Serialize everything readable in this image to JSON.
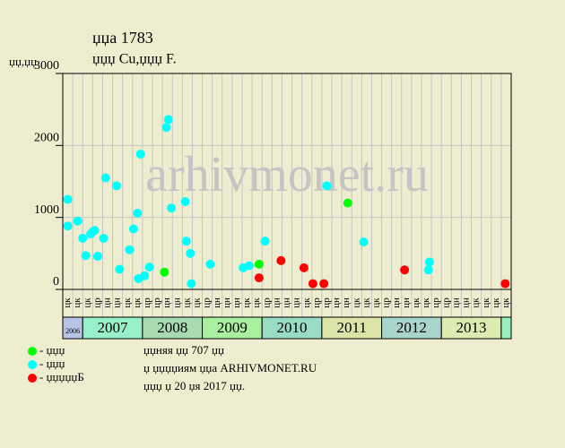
{
  "chart_data": {
    "type": "scatter",
    "title": "џџа 1783",
    "subtitle": "џџџ Cu,џџџ F.",
    "ylabel": "џџ,џџ",
    "watermark": "arhivmonet.ru",
    "categories": [
      "цк",
      "цк",
      "цк",
      "цр",
      "цн",
      "цн",
      "цк",
      "цк",
      "цр",
      "цр",
      "цн",
      "цн",
      "цк",
      "цк",
      "цр",
      "цн",
      "цн",
      "цн",
      "цк",
      "цк",
      "цр",
      "цн",
      "цн",
      "цн",
      "цк",
      "цр",
      "цр",
      "цн",
      "цн",
      "цк",
      "цк",
      "цк",
      "цр",
      "цн",
      "цн",
      "цк",
      "цк",
      "цр",
      "цр",
      "цн",
      "цн",
      "цк",
      "цк",
      "цк",
      "цк"
    ],
    "year_bands": [
      {
        "label": "2006",
        "columns": 2,
        "color": "#b8c4e4"
      },
      {
        "label": "2007",
        "columns": 6,
        "color": "#98f0c8"
      },
      {
        "label": "2008",
        "columns": 6,
        "color": "#a8dcb0"
      },
      {
        "label": "2009",
        "columns": 6,
        "color": "#a8f0a0"
      },
      {
        "label": "2010",
        "columns": 6,
        "color": "#98dcc4"
      },
      {
        "label": "2011",
        "columns": 6,
        "color": "#dce4a8"
      },
      {
        "label": "2012",
        "columns": 6,
        "color": "#a8d4cc"
      },
      {
        "label": "2013",
        "columns": 6,
        "color": "#dcecb0"
      },
      {
        "label": null,
        "columns": 1,
        "color": "#98f0c0"
      }
    ],
    "xlim": [
      0,
      45
    ],
    "ylim": [
      0,
      3000
    ],
    "yticks": [
      0,
      1000,
      2000,
      3000
    ],
    "grid": true,
    "series": [
      {
        "name": "- џџџ",
        "color": "#00ff00",
        "x": [
          10.2,
          19.7,
          28.6
        ],
        "values": [
          240,
          350,
          1200
        ]
      },
      {
        "name": "- џџџ",
        "color": "#00ffff",
        "x": [
          0.5,
          0.5,
          1.5,
          2.0,
          2.3,
          2.8,
          3.0,
          3.2,
          3.5,
          4.1,
          4.3,
          5.4,
          5.7,
          6.7,
          7.1,
          7.5,
          7.8,
          7.6,
          8.2,
          8.7,
          10.4,
          10.6,
          10.9,
          12.3,
          12.4,
          12.8,
          12.9,
          14.8,
          18.1,
          18.7,
          20.3,
          26.5,
          30.2,
          36.7,
          36.8
        ],
        "values": [
          1250,
          880,
          950,
          710,
          470,
          770,
          800,
          820,
          460,
          710,
          1550,
          1440,
          280,
          550,
          840,
          1060,
          1880,
          150,
          190,
          310,
          2250,
          2360,
          1130,
          1220,
          670,
          500,
          80,
          350,
          300,
          330,
          670,
          1440,
          660,
          270,
          380
        ]
      },
      {
        "name": "- џџџџџБ",
        "color": "#ff0000",
        "x": [
          19.7,
          21.9,
          24.2,
          25.1,
          26.2,
          34.3,
          44.4
        ],
        "values": [
          160,
          400,
          300,
          80,
          80,
          270,
          80
        ]
      }
    ],
    "notes": [
      "џџняя џџ 707 џџ",
      "џ џџџџиям џџа ARHIVMONET.RU",
      "џџџ џ 20 џя 2017 џџ."
    ]
  }
}
